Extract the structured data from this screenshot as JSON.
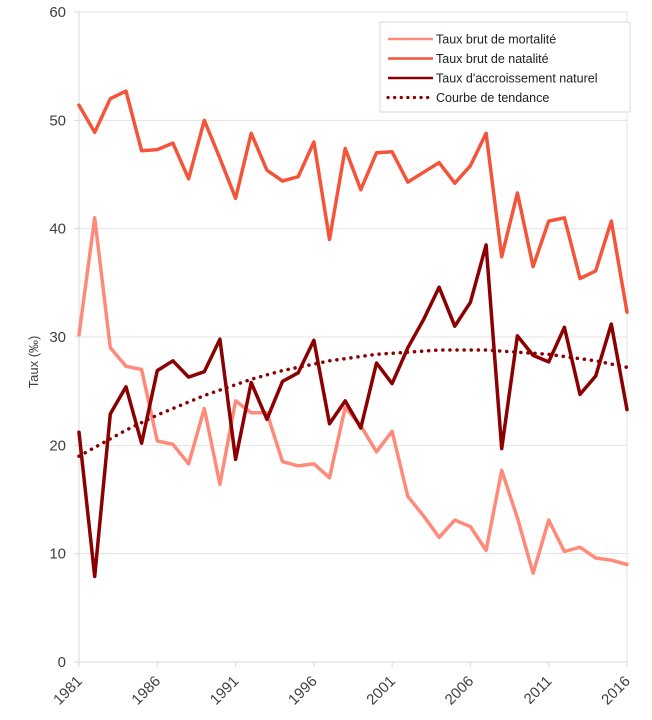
{
  "chart_data": {
    "type": "line",
    "title": "",
    "xlabel": "",
    "ylabel": "Taux (‰)",
    "ylim": [
      0,
      60
    ],
    "yticks": [
      0,
      10,
      20,
      30,
      40,
      50,
      60
    ],
    "xlim": [
      1981,
      2016
    ],
    "xticks": [
      1981,
      1986,
      1991,
      1996,
      2001,
      2006,
      2011,
      2016
    ],
    "grid": "horizontal",
    "legend_position": "top-right",
    "x": [
      1981,
      1982,
      1983,
      1984,
      1985,
      1986,
      1987,
      1988,
      1989,
      1990,
      1991,
      1992,
      1993,
      1994,
      1995,
      1996,
      1997,
      1998,
      1999,
      2000,
      2001,
      2002,
      2003,
      2004,
      2005,
      2006,
      2007,
      2008,
      2009,
      2010,
      2011,
      2012,
      2013,
      2014,
      2015,
      2016
    ],
    "series": [
      {
        "name": "Taux brut de mortalité",
        "color": "#FF8A7A",
        "style": "solid",
        "values": [
          30.2,
          41.0,
          29.0,
          27.3,
          27.0,
          20.4,
          20.1,
          18.3,
          23.4,
          16.4,
          24.1,
          23.0,
          23.0,
          18.5,
          18.1,
          18.3,
          17.0,
          23.5,
          21.8,
          19.4,
          21.3,
          15.3,
          13.5,
          11.5,
          13.1,
          12.5,
          10.3,
          17.7,
          13.3,
          8.2,
          13.1,
          10.2,
          10.6,
          9.6,
          9.4,
          9.0
        ]
      },
      {
        "name": "Taux brut de natalité",
        "color": "#F4553A",
        "style": "solid",
        "values": [
          51.4,
          48.9,
          52.0,
          52.7,
          47.2,
          47.3,
          47.9,
          44.6,
          50.0,
          46.5,
          42.8,
          48.8,
          45.4,
          44.4,
          44.8,
          48.0,
          39.0,
          47.4,
          43.6,
          47.0,
          47.1,
          44.3,
          45.2,
          46.1,
          44.2,
          45.8,
          48.8,
          37.4,
          43.3,
          36.5,
          40.7,
          41.0,
          35.4,
          36.1,
          40.7,
          32.3
        ]
      },
      {
        "name": "Taux d'accroissement naturel",
        "color": "#8B0000",
        "style": "solid",
        "values": [
          21.2,
          7.9,
          22.9,
          25.4,
          20.2,
          26.9,
          27.8,
          26.3,
          26.8,
          29.8,
          18.7,
          25.8,
          22.4,
          25.9,
          26.7,
          29.7,
          22.0,
          24.1,
          21.6,
          27.6,
          25.7,
          29.0,
          31.6,
          34.6,
          31.0,
          33.2,
          38.5,
          19.7,
          30.1,
          28.3,
          27.7,
          30.9,
          24.7,
          26.4,
          31.2,
          23.3
        ]
      },
      {
        "name": "Courbe de tendance",
        "color": "#8B0000",
        "style": "dotted",
        "values": [
          19.0,
          19.8,
          20.6,
          21.4,
          22.1,
          22.8,
          23.4,
          24.0,
          24.6,
          25.1,
          25.6,
          26.1,
          26.5,
          26.9,
          27.2,
          27.5,
          27.8,
          28.0,
          28.2,
          28.4,
          28.5,
          28.6,
          28.7,
          28.8,
          28.8,
          28.8,
          28.8,
          28.7,
          28.6,
          28.5,
          28.4,
          28.2,
          28.0,
          27.8,
          27.5,
          27.2
        ]
      }
    ]
  }
}
